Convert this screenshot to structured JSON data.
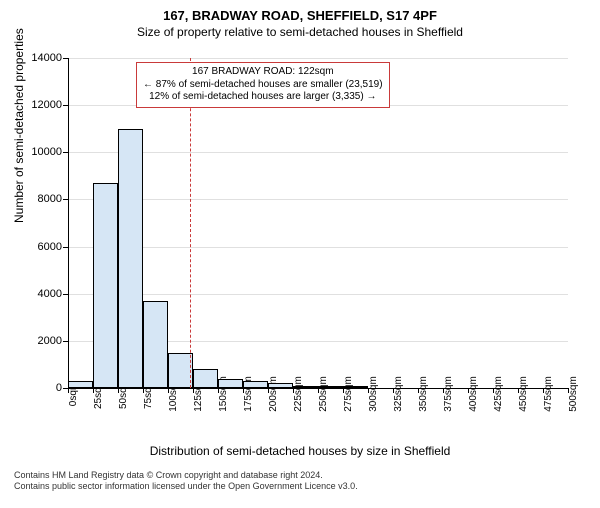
{
  "title": "167, BRADWAY ROAD, SHEFFIELD, S17 4PF",
  "subtitle": "Size of property relative to semi-detached houses in Sheffield",
  "chart": {
    "type": "histogram",
    "ylabel": "Number of semi-detached properties",
    "xlabel": "Distribution of semi-detached houses by size in Sheffield",
    "ylim_max": 14000,
    "ytick_step": 2000,
    "bar_fill": "#d6e6f5",
    "bar_border": "#000000",
    "grid_color": "#e0e0e0",
    "background": "#ffffff",
    "marker_color": "#c93a3a",
    "marker_value": 122,
    "x_start": 0,
    "x_step": 25,
    "x_count": 21,
    "x_unit": "sqm",
    "values": [
      300,
      8700,
      11000,
      3700,
      1500,
      800,
      400,
      300,
      200,
      100,
      50,
      100,
      0,
      0,
      0,
      0,
      0,
      0,
      0,
      0
    ],
    "yticks": [
      0,
      2000,
      4000,
      6000,
      8000,
      10000,
      12000,
      14000
    ]
  },
  "annotation": {
    "line1": "167 BRADWAY ROAD: 122sqm",
    "line2": "← 87% of semi-detached houses are smaller (23,519)",
    "line3": "12% of semi-detached houses are larger (3,335) →"
  },
  "footer": {
    "line1": "Contains HM Land Registry data © Crown copyright and database right 2024.",
    "line2": "Contains public sector information licensed under the Open Government Licence v3.0."
  }
}
